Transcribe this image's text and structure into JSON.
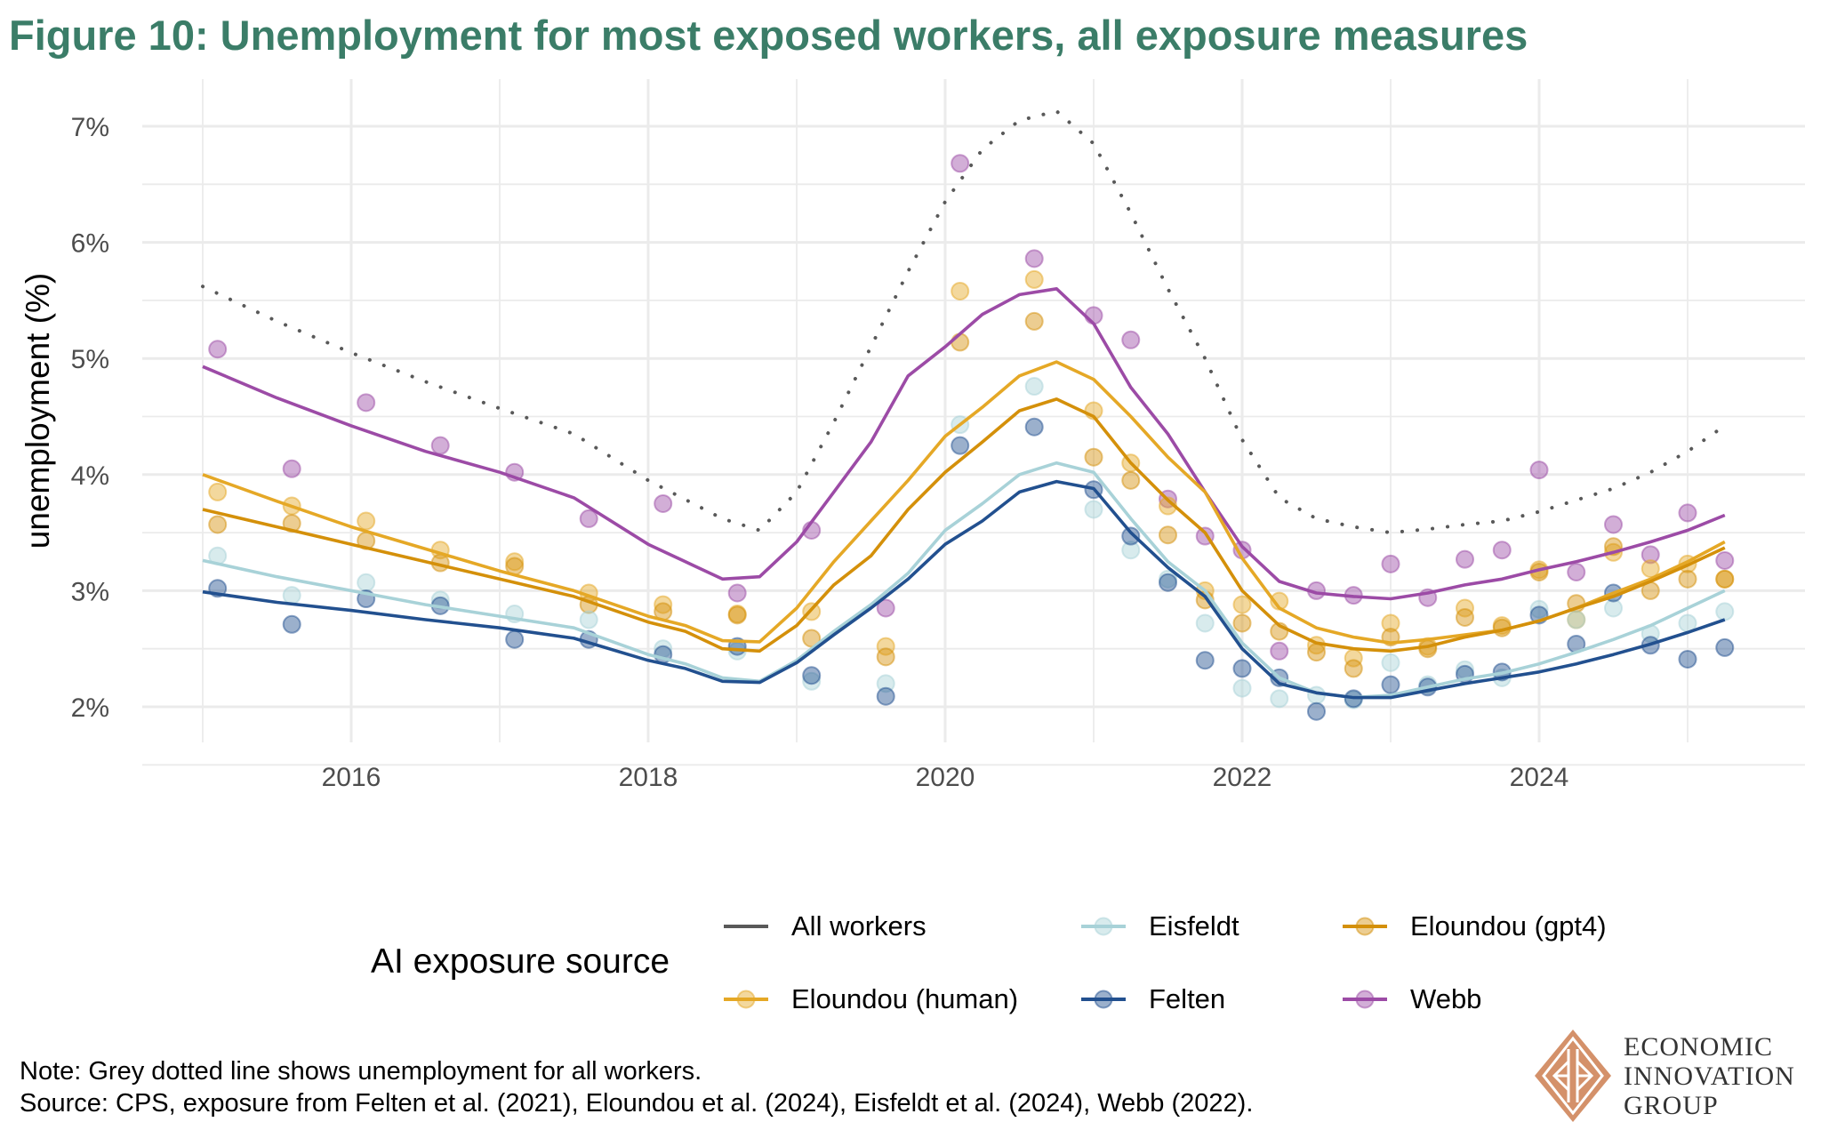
{
  "title": "Figure 10: Unemployment for most exposed workers, all exposure measures",
  "legend": {
    "title": "AI exposure source",
    "items": [
      {
        "name": "All workers",
        "color": "#595959",
        "style": "line"
      },
      {
        "name": "Eisfeldt",
        "color": "#a8d2d8",
        "style": "line-point"
      },
      {
        "name": "Eloundou (gpt4)",
        "color": "#d4900a",
        "style": "line-point"
      },
      {
        "name": "Eloundou (human)",
        "color": "#e5a826",
        "style": "line-point"
      },
      {
        "name": "Felten",
        "color": "#22508f",
        "style": "line-point"
      },
      {
        "name": "Webb",
        "color": "#9c4ba6",
        "style": "line-point"
      }
    ]
  },
  "notes": {
    "line1": "Note: Grey dotted line shows unemployment for all workers.",
    "line2": "Source: CPS, exposure from Felten et al. (2021), Eloundou et al. (2024), Eisfeldt et al. (2024), Webb (2022)."
  },
  "logo": {
    "line1": "ECONOMIC",
    "line2": "INNOVATION",
    "line3": "GROUP",
    "color": "#d4916a"
  },
  "chart_data": {
    "type": "line",
    "title": "Figure 10: Unemployment for most exposed workers, all exposure measures",
    "xlabel": "",
    "ylabel": "unemployment (%)",
    "xlim": [
      2014.75,
      2026.15
    ],
    "ylim": [
      1.7,
      7.47
    ],
    "xticks": [
      2016,
      2018,
      2020,
      2022,
      2024
    ],
    "xtick_labels": [
      "2016",
      "2018",
      "2020",
      "2022",
      "2024"
    ],
    "yticks": [
      2,
      3,
      4,
      5,
      6,
      7
    ],
    "ytick_labels": [
      "2%",
      "3%",
      "4%",
      "5%",
      "6%",
      "7%"
    ],
    "grid": true,
    "legend_position": "bottom",
    "points_x": [
      2015.1,
      2015.6,
      2016.1,
      2016.6,
      2017.1,
      2017.6,
      2018.1,
      2018.6,
      2019.1,
      2019.6,
      2020.1,
      2020.6,
      2021.0,
      2021.25,
      2021.5,
      2021.75,
      2022.0,
      2022.25,
      2022.5,
      2022.75,
      2023.0,
      2023.25,
      2023.5,
      2023.75,
      2024.0,
      2024.25,
      2024.5,
      2024.75,
      2025.0,
      2025.25
    ],
    "all_workers_line": {
      "name": "All workers",
      "x": [
        2015.0,
        2015.5,
        2016.0,
        2016.5,
        2017.0,
        2017.5,
        2018.0,
        2018.5,
        2018.75,
        2019.0,
        2019.25,
        2019.5,
        2019.75,
        2020.0,
        2020.25,
        2020.5,
        2020.75,
        2021.0,
        2021.25,
        2021.5,
        2021.75,
        2022.0,
        2022.25,
        2022.5,
        2022.75,
        2023.0,
        2023.25,
        2023.5,
        2023.75,
        2024.0,
        2024.25,
        2024.5,
        2024.75,
        2025.0,
        2025.25
      ],
      "y": [
        5.62,
        5.32,
        5.05,
        4.8,
        4.57,
        4.35,
        3.95,
        3.62,
        3.52,
        3.85,
        4.45,
        5.1,
        5.75,
        6.35,
        6.8,
        7.05,
        7.13,
        6.85,
        6.25,
        5.6,
        5.0,
        4.3,
        3.8,
        3.62,
        3.55,
        3.5,
        3.53,
        3.57,
        3.6,
        3.68,
        3.78,
        3.88,
        4.02,
        4.2,
        4.42
      ]
    },
    "series": [
      {
        "name": "Webb",
        "points": [
          5.08,
          4.05,
          4.62,
          4.25,
          4.02,
          3.62,
          3.75,
          2.98,
          3.52,
          2.85,
          6.68,
          5.86,
          5.37,
          5.16,
          3.79,
          3.47,
          3.35,
          2.48,
          3.0,
          2.96,
          3.23,
          2.94,
          3.27,
          3.35,
          4.04,
          3.16,
          3.57,
          3.31,
          3.67,
          3.26
        ],
        "line_x": [
          2015.0,
          2015.5,
          2016.0,
          2016.5,
          2017.0,
          2017.5,
          2018.0,
          2018.25,
          2018.5,
          2018.75,
          2019.0,
          2019.25,
          2019.5,
          2019.75,
          2020.0,
          2020.25,
          2020.5,
          2020.75,
          2021.0,
          2021.25,
          2021.5,
          2021.75,
          2022.0,
          2022.25,
          2022.5,
          2022.75,
          2023.0,
          2023.25,
          2023.5,
          2023.75,
          2024.0,
          2024.25,
          2024.5,
          2024.75,
          2025.0,
          2025.25
        ],
        "line_y": [
          4.93,
          4.66,
          4.42,
          4.2,
          4.02,
          3.8,
          3.4,
          3.25,
          3.1,
          3.12,
          3.42,
          3.85,
          4.28,
          4.85,
          5.1,
          5.38,
          5.55,
          5.6,
          5.3,
          4.75,
          4.35,
          3.85,
          3.38,
          3.08,
          2.98,
          2.95,
          2.93,
          2.98,
          3.05,
          3.1,
          3.18,
          3.25,
          3.33,
          3.42,
          3.52,
          3.65
        ]
      },
      {
        "name": "Eloundou (human)",
        "points": [
          3.85,
          3.73,
          3.6,
          3.35,
          3.25,
          2.98,
          2.88,
          2.8,
          2.82,
          2.52,
          5.58,
          5.68,
          4.55,
          4.1,
          3.73,
          3.0,
          2.88,
          2.91,
          2.53,
          2.42,
          2.72,
          2.52,
          2.85,
          2.7,
          3.18,
          2.75,
          3.33,
          3.19,
          3.23,
          3.1
        ],
        "line_x": [
          2015.0,
          2015.5,
          2016.0,
          2016.5,
          2017.0,
          2017.5,
          2018.0,
          2018.25,
          2018.5,
          2018.75,
          2019.0,
          2019.25,
          2019.5,
          2019.75,
          2020.0,
          2020.25,
          2020.5,
          2020.75,
          2021.0,
          2021.25,
          2021.5,
          2021.75,
          2022.0,
          2022.25,
          2022.5,
          2022.75,
          2023.0,
          2023.25,
          2023.5,
          2023.75,
          2024.0,
          2024.25,
          2024.5,
          2024.75,
          2025.0,
          2025.25
        ],
        "line_y": [
          4.0,
          3.77,
          3.55,
          3.36,
          3.17,
          3.0,
          2.78,
          2.7,
          2.57,
          2.56,
          2.85,
          3.25,
          3.6,
          3.95,
          4.33,
          4.58,
          4.85,
          4.97,
          4.82,
          4.5,
          4.15,
          3.85,
          3.28,
          2.85,
          2.68,
          2.6,
          2.55,
          2.58,
          2.62,
          2.66,
          2.74,
          2.85,
          2.98,
          3.1,
          3.25,
          3.42
        ]
      },
      {
        "name": "Eloundou (gpt4)",
        "points": [
          3.57,
          3.58,
          3.43,
          3.24,
          3.21,
          2.88,
          2.82,
          2.79,
          2.59,
          2.43,
          5.14,
          5.32,
          4.15,
          3.95,
          3.48,
          2.92,
          2.72,
          2.65,
          2.47,
          2.33,
          2.6,
          2.5,
          2.77,
          2.68,
          3.16,
          2.89,
          3.38,
          3.0,
          3.1,
          3.1
        ],
        "line_x": [
          2015.0,
          2015.5,
          2016.0,
          2016.5,
          2017.0,
          2017.5,
          2018.0,
          2018.25,
          2018.5,
          2018.75,
          2019.0,
          2019.25,
          2019.5,
          2019.75,
          2020.0,
          2020.25,
          2020.5,
          2020.75,
          2021.0,
          2021.25,
          2021.5,
          2021.75,
          2022.0,
          2022.25,
          2022.5,
          2022.75,
          2023.0,
          2023.25,
          2023.5,
          2023.75,
          2024.0,
          2024.25,
          2024.5,
          2024.75,
          2025.0,
          2025.25
        ],
        "line_y": [
          3.7,
          3.55,
          3.4,
          3.25,
          3.1,
          2.95,
          2.73,
          2.65,
          2.5,
          2.48,
          2.7,
          3.05,
          3.3,
          3.7,
          4.02,
          4.28,
          4.55,
          4.65,
          4.5,
          4.1,
          3.78,
          3.5,
          3.0,
          2.7,
          2.55,
          2.5,
          2.48,
          2.52,
          2.6,
          2.66,
          2.74,
          2.85,
          2.95,
          3.08,
          3.22,
          3.37
        ]
      },
      {
        "name": "Eisfeldt",
        "points": [
          3.3,
          2.96,
          3.07,
          2.92,
          2.8,
          2.75,
          2.5,
          2.48,
          2.22,
          2.2,
          4.43,
          4.76,
          3.7,
          3.35,
          3.1,
          2.72,
          2.16,
          2.07,
          2.1,
          2.06,
          2.38,
          2.19,
          2.32,
          2.25,
          2.84,
          2.75,
          2.85,
          2.63,
          2.72,
          2.82
        ],
        "line_x": [
          2015.0,
          2015.5,
          2016.0,
          2016.5,
          2017.0,
          2017.5,
          2018.0,
          2018.25,
          2018.5,
          2018.75,
          2019.0,
          2019.25,
          2019.5,
          2019.75,
          2020.0,
          2020.25,
          2020.5,
          2020.75,
          2021.0,
          2021.25,
          2021.5,
          2021.75,
          2022.0,
          2022.25,
          2022.5,
          2022.75,
          2023.0,
          2023.25,
          2023.5,
          2023.75,
          2024.0,
          2024.25,
          2024.5,
          2024.75,
          2025.0,
          2025.25
        ],
        "line_y": [
          3.26,
          3.12,
          3.0,
          2.88,
          2.78,
          2.68,
          2.45,
          2.37,
          2.25,
          2.22,
          2.4,
          2.65,
          2.88,
          3.15,
          3.52,
          3.75,
          4.0,
          4.1,
          4.02,
          3.62,
          3.25,
          3.0,
          2.55,
          2.25,
          2.12,
          2.08,
          2.1,
          2.17,
          2.24,
          2.29,
          2.37,
          2.47,
          2.58,
          2.7,
          2.85,
          3.0
        ]
      },
      {
        "name": "Felten",
        "points": [
          3.02,
          2.71,
          2.93,
          2.87,
          2.58,
          2.58,
          2.45,
          2.52,
          2.27,
          2.09,
          4.25,
          4.41,
          3.87,
          3.47,
          3.07,
          2.4,
          2.33,
          2.25,
          1.96,
          2.07,
          2.19,
          2.17,
          2.28,
          2.3,
          2.79,
          2.54,
          2.98,
          2.53,
          2.41,
          2.51
        ],
        "line_x": [
          2015.0,
          2015.5,
          2016.0,
          2016.5,
          2017.0,
          2017.5,
          2018.0,
          2018.25,
          2018.5,
          2018.75,
          2019.0,
          2019.25,
          2019.5,
          2019.75,
          2020.0,
          2020.25,
          2020.5,
          2020.75,
          2021.0,
          2021.25,
          2021.5,
          2021.75,
          2022.0,
          2022.25,
          2022.5,
          2022.75,
          2023.0,
          2023.25,
          2023.5,
          2023.75,
          2024.0,
          2024.25,
          2024.5,
          2024.75,
          2025.0,
          2025.25
        ],
        "line_y": [
          2.99,
          2.9,
          2.83,
          2.75,
          2.68,
          2.59,
          2.4,
          2.33,
          2.22,
          2.21,
          2.38,
          2.62,
          2.85,
          3.1,
          3.4,
          3.6,
          3.85,
          3.94,
          3.88,
          3.5,
          3.2,
          2.95,
          2.5,
          2.2,
          2.12,
          2.08,
          2.08,
          2.14,
          2.2,
          2.25,
          2.3,
          2.37,
          2.45,
          2.54,
          2.64,
          2.75
        ]
      }
    ]
  }
}
